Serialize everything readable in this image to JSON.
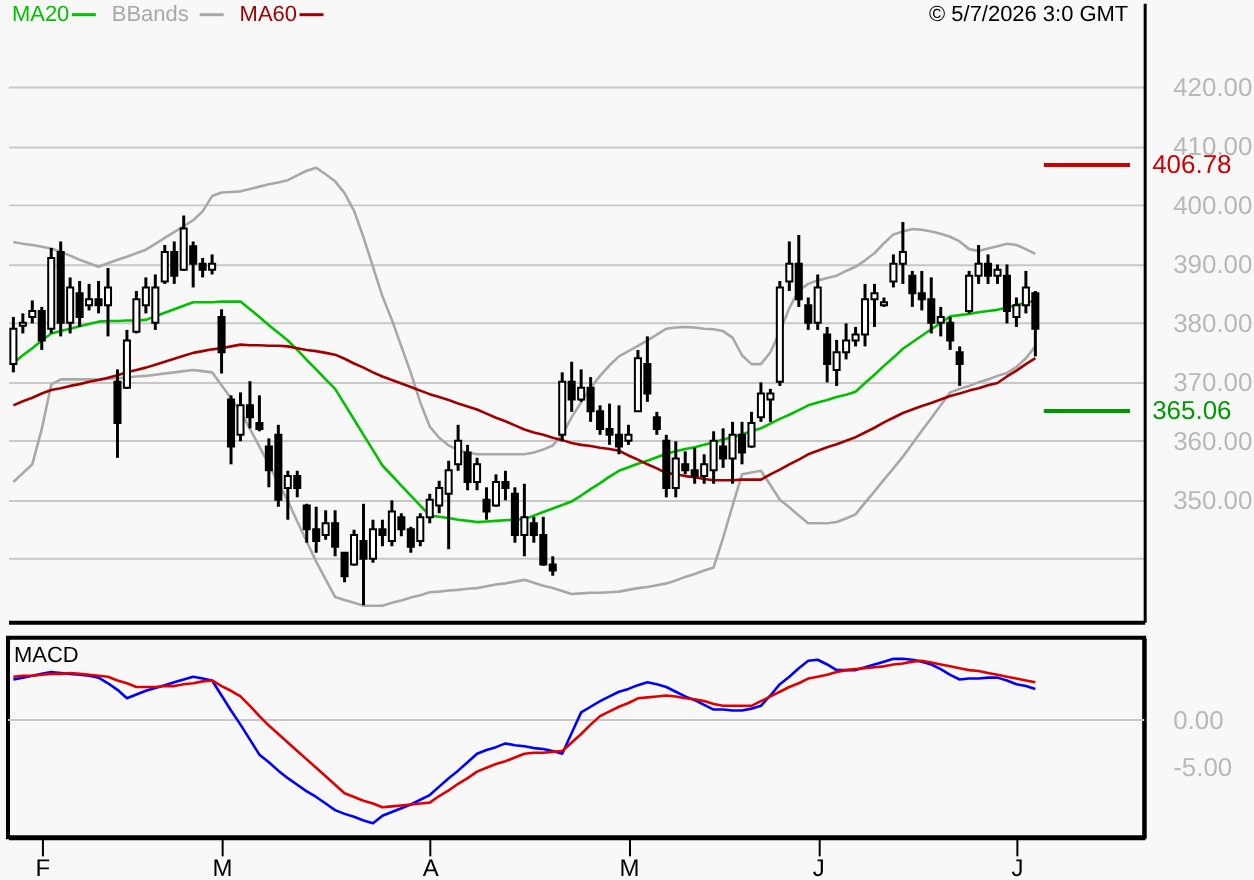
{
  "chart_data": [
    {
      "type": "candlestick",
      "legend": "top left",
      "grid": "y",
      "tick_labels": "y",
      "categories": [
        null,
        null,
        null,
        null,
        null,
        null,
        null,
        null,
        null,
        null,
        null,
        null,
        null,
        null,
        null,
        null,
        null,
        null,
        null,
        null,
        null,
        null,
        null,
        null,
        null,
        null,
        null,
        null,
        null,
        null,
        null,
        null,
        null,
        null,
        null,
        null,
        null,
        null,
        null,
        null,
        null,
        null,
        null,
        null,
        null,
        null,
        null,
        null,
        null,
        null,
        null,
        null,
        null,
        null,
        null,
        null,
        null,
        null,
        null,
        null,
        null,
        null,
        null,
        null,
        null,
        null,
        null,
        null,
        null,
        null,
        null,
        null,
        null,
        null,
        null,
        null,
        null,
        null,
        null,
        null,
        null,
        null,
        null,
        null,
        null,
        null,
        null,
        null,
        null,
        null,
        null,
        null,
        null,
        null,
        null,
        null,
        null,
        null,
        null,
        null,
        null,
        null,
        null,
        null,
        null,
        null,
        null,
        null,
        null
      ],
      "ohlc": [
        [
          373,
          381.0,
          371.6,
          379
        ],
        [
          379.5,
          381.6,
          378.2,
          380
        ],
        [
          381,
          383.8,
          379.9,
          382
        ],
        [
          382,
          382.7,
          375.4,
          377
        ],
        [
          379,
          392.7,
          378.2,
          391
        ],
        [
          392,
          393.8,
          377.7,
          380
        ],
        [
          380,
          387.7,
          378.2,
          386
        ],
        [
          385,
          387.1,
          379.3,
          381
        ],
        [
          383,
          386.6,
          382.1,
          384
        ],
        [
          384,
          387.1,
          381.6,
          383
        ],
        [
          383,
          389.3,
          377.7,
          386
        ],
        [
          370,
          372.1,
          357.1,
          363
        ],
        [
          369,
          378.8,
          368.8,
          377
        ],
        [
          378.5,
          385.4,
          378.2,
          384
        ],
        [
          383,
          387.7,
          381.6,
          386
        ],
        [
          380,
          388.2,
          378.8,
          386
        ],
        [
          387,
          393.2,
          386.6,
          392
        ],
        [
          392,
          393.8,
          386.6,
          388
        ],
        [
          389,
          398.2,
          388.8,
          396
        ],
        [
          393,
          393.8,
          386.0,
          390
        ],
        [
          390,
          391.0,
          387.7,
          389
        ],
        [
          389,
          391.6,
          388.2,
          390
        ],
        [
          381,
          382.3,
          371.4,
          375
        ],
        [
          367,
          367.7,
          356.0,
          359
        ],
        [
          361,
          368.2,
          359.9,
          366
        ],
        [
          366,
          370.1,
          362.1,
          364
        ],
        [
          363,
          367.7,
          361.6,
          362
        ],
        [
          359,
          360.4,
          352.1,
          355
        ],
        [
          361,
          362.7,
          348.8,
          350
        ],
        [
          352,
          354.9,
          346.6,
          354
        ],
        [
          354,
          354.9,
          350.4,
          352
        ],
        [
          349,
          349.3,
          342.7,
          345
        ],
        [
          345,
          348.8,
          341.0,
          343
        ],
        [
          344,
          348.2,
          343.2,
          346
        ],
        [
          346,
          348.2,
          340.4,
          342
        ],
        [
          341,
          341.0,
          336.0,
          337
        ],
        [
          339,
          344.9,
          338.8,
          344
        ],
        [
          343,
          349.3,
          332.1,
          340
        ],
        [
          340,
          346.6,
          339.3,
          345
        ],
        [
          345,
          346.6,
          342.1,
          344
        ],
        [
          343,
          349.9,
          342.1,
          348
        ],
        [
          347,
          347.7,
          343.8,
          345
        ],
        [
          345,
          345.4,
          341.0,
          342
        ],
        [
          343,
          347.7,
          342.1,
          347
        ],
        [
          347,
          351.0,
          346.0,
          350
        ],
        [
          349,
          353.2,
          347.7,
          352
        ],
        [
          351,
          356.6,
          341.6,
          355
        ],
        [
          356,
          362.7,
          354.9,
          360
        ],
        [
          358,
          359.3,
          351.6,
          353
        ],
        [
          353,
          357.1,
          351.6,
          356
        ],
        [
          350,
          352.1,
          346.6,
          348
        ],
        [
          349,
          354.3,
          348.8,
          353
        ],
        [
          353,
          354.9,
          349.9,
          352
        ],
        [
          351,
          352.1,
          342.7,
          344
        ],
        [
          344,
          352.7,
          340.4,
          347
        ],
        [
          346,
          347.1,
          342.7,
          344
        ],
        [
          344,
          347.1,
          338.8,
          339
        ],
        [
          339,
          340.4,
          337.1,
          338
        ],
        [
          361,
          371.6,
          359.9,
          370
        ],
        [
          370,
          373.4,
          364.9,
          367
        ],
        [
          367,
          372.1,
          366.6,
          369
        ],
        [
          369,
          370.8,
          363.2,
          365
        ],
        [
          365,
          366.0,
          361.0,
          362
        ],
        [
          362,
          366.3,
          359.3,
          361
        ],
        [
          361,
          366.0,
          357.7,
          359
        ],
        [
          360,
          362.7,
          359.3,
          361
        ],
        [
          365,
          375.4,
          364.9,
          374
        ],
        [
          373,
          377.7,
          366.6,
          368
        ],
        [
          364,
          364.9,
          361.0,
          362
        ],
        [
          360,
          361.0,
          350.4,
          352
        ],
        [
          352,
          359.9,
          350.4,
          357
        ],
        [
          356,
          358.2,
          354.3,
          355
        ],
        [
          355,
          358.8,
          352.7,
          354
        ],
        [
          354,
          357.7,
          352.7,
          356
        ],
        [
          355,
          361.6,
          352.7,
          360
        ],
        [
          359,
          362.1,
          355.4,
          357
        ],
        [
          357,
          363.2,
          352.7,
          361
        ],
        [
          361,
          363.2,
          356.0,
          358
        ],
        [
          359,
          364.9,
          358.8,
          363
        ],
        [
          364,
          369.9,
          363.2,
          368
        ],
        [
          367,
          368.8,
          363.2,
          368
        ],
        [
          370,
          387.1,
          369.3,
          386
        ],
        [
          387,
          393.8,
          385.4,
          390
        ],
        [
          390,
          394.9,
          382.7,
          384
        ],
        [
          383,
          384.3,
          378.8,
          380
        ],
        [
          380,
          388.2,
          378.8,
          386
        ],
        [
          378,
          379.3,
          369.9,
          373
        ],
        [
          372,
          377.1,
          369.3,
          375
        ],
        [
          375,
          379.9,
          373.8,
          377
        ],
        [
          377,
          379.3,
          376.0,
          378
        ],
        [
          378,
          386.6,
          376.0,
          384
        ],
        [
          384,
          386.6,
          379.3,
          385
        ],
        [
          383,
          384.3,
          382.7,
          383.5
        ],
        [
          387,
          391.6,
          386.0,
          390
        ],
        [
          390,
          397.1,
          386.6,
          392
        ],
        [
          388,
          388.8,
          382.7,
          385
        ],
        [
          385,
          388.8,
          382.1,
          384
        ],
        [
          384,
          387.7,
          378.2,
          380
        ],
        [
          380,
          382.7,
          377.7,
          381
        ],
        [
          380,
          381.0,
          375.4,
          377
        ],
        [
          375,
          376.0,
          369.3,
          373
        ],
        [
          382,
          388.8,
          381.6,
          388
        ],
        [
          388,
          393.2,
          386.6,
          390
        ],
        [
          390,
          391.6,
          386.6,
          388
        ],
        [
          388,
          389.9,
          386.6,
          389
        ],
        [
          388,
          389.9,
          379.9,
          382
        ],
        [
          381,
          384.3,
          379.3,
          383
        ],
        [
          383,
          388.8,
          381.6,
          386
        ],
        [
          385,
          385.4,
          374.3,
          379
        ]
      ],
      "series": [
        {
          "name": "MA20",
          "type": "line",
          "color": "#00c000",
          "values": [
            373.2,
            374.5,
            375.7,
            377.0,
            378.2,
            378.6,
            379.0,
            379.4,
            379.8,
            380.2,
            380.3,
            380.3,
            380.4,
            380.4,
            380.5,
            381.1,
            381.7,
            382.3,
            382.9,
            383.5,
            383.5,
            383.5,
            383.6,
            383.6,
            383.6,
            382.3,
            381.0,
            379.6,
            378.3,
            377.0,
            375.4,
            373.7,
            372.1,
            370.4,
            368.8,
            366.2,
            363.6,
            361.0,
            358.4,
            355.8,
            354.1,
            352.4,
            350.7,
            349.0,
            347.3,
            347.1,
            346.9,
            346.6,
            346.4,
            346.2,
            346.3,
            346.4,
            346.5,
            346.6,
            346.7,
            347.3,
            347.9,
            348.5,
            349.1,
            349.7,
            350.7,
            351.8,
            352.8,
            353.9,
            354.9,
            355.5,
            356.1,
            356.6,
            357.2,
            357.8,
            358.2,
            358.6,
            358.9,
            359.3,
            359.7,
            360.2,
            360.6,
            361.1,
            361.6,
            362.1,
            362.9,
            363.7,
            364.4,
            365.2,
            366.0,
            366.5,
            366.9,
            367.4,
            367.8,
            368.3,
            369.8,
            371.2,
            372.7,
            374.1,
            375.6,
            376.7,
            377.8,
            378.9,
            380.0,
            381.1,
            381.3,
            381.5,
            381.8,
            382.0,
            382.2,
            382.6,
            383.0,
            383.4,
            383.8
          ]
        },
        {
          "name": "BBands",
          "type": "line",
          "color": "#a8a8a8",
          "values": [
            393.7,
            393.4,
            393.2,
            392.9,
            392.6,
            392.0,
            391.4,
            390.7,
            390.1,
            389.5,
            390.1,
            390.7,
            391.2,
            391.8,
            392.4,
            393.4,
            394.4,
            395.4,
            396.4,
            397.4,
            398.9,
            401.5,
            402.1,
            402.2,
            402.3,
            402.7,
            403.1,
            403.5,
            403.8,
            404.2,
            405.0,
            405.8,
            406.3,
            405.2,
            404.0,
            402.0,
            399.0,
            394.5,
            389.5,
            384.5,
            380.5,
            376.0,
            371.5,
            366.5,
            362.4,
            360.5,
            359.2,
            358.4,
            358.0,
            357.7,
            357.7,
            357.7,
            357.7,
            357.7,
            357.7,
            358.0,
            358.5,
            359.2,
            361.0,
            364.0,
            366.5,
            369.0,
            371.0,
            372.8,
            374.3,
            375.2,
            376.1,
            377.0,
            378.0,
            379.0,
            379.2,
            379.3,
            379.2,
            379.0,
            378.9,
            378.6,
            377.5,
            374.5,
            373.0,
            373.0,
            375.0,
            378.5,
            382.5,
            385.5,
            386.6,
            387.2,
            387.6,
            388.0,
            388.8,
            389.5,
            390.6,
            391.8,
            393.5,
            395.0,
            395.5,
            395.9,
            395.8,
            395.5,
            395.1,
            394.6,
            393.8,
            392.5,
            392.2,
            392.6,
            393.0,
            393.4,
            393.2,
            392.5,
            391.7
          ]
        },
        {
          "type": "line",
          "color": "#a8a8a8",
          "values": [
            353.0,
            354.5,
            356.0,
            362.0,
            369.5,
            370.4,
            370.4,
            370.4,
            370.4,
            370.4,
            370.5,
            370.6,
            370.7,
            370.9,
            371.0,
            371.2,
            371.4,
            371.6,
            371.8,
            372.0,
            371.8,
            371.6,
            369.4,
            367.2,
            365.0,
            362.0,
            359.0,
            356.0,
            352.8,
            349.8,
            346.3,
            342.9,
            339.5,
            336.5,
            333.5,
            333.0,
            332.5,
            332.0,
            332.0,
            332.0,
            332.5,
            332.9,
            333.4,
            333.8,
            334.3,
            334.4,
            334.6,
            334.7,
            334.9,
            335.0,
            335.3,
            335.6,
            335.8,
            336.1,
            336.4,
            335.9,
            335.4,
            335.0,
            334.5,
            334.0,
            334.1,
            334.2,
            334.2,
            334.3,
            334.4,
            334.7,
            335.0,
            335.2,
            335.5,
            335.8,
            336.3,
            336.9,
            337.4,
            338.0,
            338.5,
            343.5,
            349.0,
            354.3,
            354.6,
            354.9,
            352.5,
            350.0,
            348.7,
            347.3,
            346.0,
            346.0,
            346.0,
            346.2,
            346.8,
            347.5,
            349.5,
            351.4,
            353.4,
            355.3,
            357.3,
            359.5,
            361.7,
            363.8,
            366.0,
            368.2,
            368.8,
            369.3,
            369.9,
            370.4,
            371.0,
            371.5,
            372.5,
            374.0,
            376.0
          ]
        },
        {
          "name": "MA60",
          "type": "line",
          "color": "#a00000",
          "values": [
            366.0,
            366.7,
            367.3,
            368.0,
            368.6,
            368.9,
            369.3,
            369.6,
            370.0,
            370.3,
            370.7,
            371.1,
            371.6,
            372.0,
            372.4,
            372.9,
            373.4,
            373.9,
            374.4,
            374.9,
            375.2,
            375.5,
            375.7,
            376.0,
            376.3,
            376.2,
            376.2,
            376.1,
            376.1,
            376.0,
            375.7,
            375.4,
            375.2,
            374.9,
            374.6,
            373.9,
            373.1,
            372.4,
            371.6,
            370.9,
            370.3,
            369.7,
            369.1,
            368.5,
            367.9,
            367.4,
            366.9,
            366.3,
            365.8,
            365.3,
            364.6,
            363.9,
            363.3,
            362.6,
            361.9,
            361.4,
            361.0,
            360.5,
            360.1,
            359.6,
            359.3,
            359.1,
            358.8,
            358.6,
            358.3,
            357.5,
            356.8,
            356.0,
            355.3,
            354.5,
            354.3,
            354.0,
            353.8,
            353.5,
            353.3,
            353.3,
            353.3,
            353.4,
            353.4,
            353.4,
            354.3,
            355.1,
            356.0,
            356.8,
            357.7,
            358.3,
            358.9,
            359.4,
            360.0,
            360.6,
            361.4,
            362.2,
            363.1,
            363.9,
            364.7,
            365.3,
            365.9,
            366.4,
            367.0,
            367.6,
            368.0,
            368.5,
            368.9,
            369.4,
            369.8,
            370.9,
            371.9,
            373.0,
            374.0
          ]
        }
      ],
      "ylim": [
        329.3,
        434.3
      ],
      "yticks": [
        {
          "value": 340,
          "label": null
        },
        {
          "value": 350,
          "label": "350.00"
        },
        {
          "value": 360,
          "label": "360.00"
        },
        {
          "value": 370,
          "label": "370.00"
        },
        {
          "value": 380,
          "label": "380.00"
        },
        {
          "value": 390,
          "label": "390.00"
        },
        {
          "value": 400,
          "label": "400.00"
        },
        {
          "value": 410,
          "label": "410.00"
        },
        {
          "value": 420,
          "label": "420.00"
        }
      ],
      "ref_lines": [
        {
          "axis": "y",
          "value": 406.78,
          "label": "406.78",
          "color": "#cc0000"
        },
        {
          "axis": "y",
          "value": 365.06,
          "label": "365.06",
          "color": "#009900"
        }
      ],
      "annotations": [
        "© 5/7/2026 3:0 GMT"
      ]
    },
    {
      "type": "line",
      "title": "MACD",
      "categories": [
        null,
        null,
        null,
        "F",
        null,
        null,
        null,
        null,
        null,
        null,
        null,
        null,
        null,
        null,
        null,
        null,
        null,
        null,
        null,
        null,
        null,
        null,
        "M",
        null,
        null,
        null,
        null,
        null,
        null,
        null,
        null,
        null,
        null,
        null,
        null,
        null,
        null,
        null,
        null,
        null,
        null,
        null,
        null,
        null,
        "A",
        null,
        null,
        null,
        null,
        null,
        null,
        null,
        null,
        null,
        null,
        null,
        null,
        null,
        null,
        null,
        null,
        null,
        null,
        null,
        null,
        "M",
        null,
        null,
        null,
        null,
        null,
        null,
        null,
        null,
        null,
        null,
        null,
        null,
        null,
        null,
        null,
        null,
        null,
        null,
        null,
        "J",
        null,
        null,
        null,
        null,
        null,
        null,
        null,
        null,
        null,
        null,
        null,
        null,
        null,
        null,
        null,
        null,
        null,
        null,
        null,
        null,
        "J",
        null,
        null
      ],
      "series": [
        {
          "color": "#0000ff",
          "values": [
            4.3,
            4.5,
            4.7,
            4.9,
            5.1,
            5.0,
            4.9,
            4.8,
            4.7,
            4.5,
            3.9,
            3.2,
            2.3,
            2.7,
            3.1,
            3.4,
            3.7,
            4.0,
            4.3,
            4.6,
            4.4,
            4.2,
            2.6,
            1.0,
            -0.5,
            -2.1,
            -3.7,
            -4.5,
            -5.4,
            -6.2,
            -6.9,
            -7.6,
            -8.2,
            -8.9,
            -9.6,
            -10.0,
            -10.3,
            -10.7,
            -11.0,
            -10.2,
            -9.8,
            -9.4,
            -9.0,
            -8.5,
            -8.0,
            -7.1,
            -6.2,
            -5.4,
            -4.5,
            -3.6,
            -3.2,
            -2.9,
            -2.5,
            -2.7,
            -2.8,
            -3.0,
            -3.1,
            -3.3,
            -3.6,
            -1.4,
            0.8,
            1.4,
            2.0,
            2.5,
            3.0,
            3.3,
            3.7,
            4.0,
            3.8,
            3.5,
            3.0,
            2.5,
            2.1,
            1.6,
            1.1,
            1.1,
            1.0,
            1.0,
            1.2,
            1.5,
            2.6,
            3.8,
            4.6,
            5.5,
            6.3,
            6.4,
            5.9,
            5.3,
            5.3,
            5.3,
            5.6,
            5.9,
            6.2,
            6.5,
            6.5,
            6.4,
            6.2,
            5.9,
            5.4,
            4.8,
            4.3,
            4.4,
            4.4,
            4.5,
            4.5,
            4.2,
            3.8,
            3.6,
            3.3
          ]
        },
        {
          "color": "#e00000",
          "values": [
            4.6,
            4.7,
            4.7,
            4.8,
            4.9,
            4.9,
            5.0,
            4.9,
            4.8,
            4.7,
            4.6,
            4.2,
            3.9,
            3.5,
            3.5,
            3.5,
            3.6,
            3.6,
            3.8,
            3.9,
            4.1,
            4.2,
            3.6,
            3.1,
            2.5,
            1.5,
            0.4,
            -0.6,
            -1.5,
            -2.4,
            -3.3,
            -4.2,
            -5.1,
            -6.0,
            -6.9,
            -7.8,
            -8.2,
            -8.6,
            -8.9,
            -9.3,
            -9.2,
            -9.1,
            -9.0,
            -8.9,
            -8.8,
            -8.1,
            -7.5,
            -6.8,
            -6.2,
            -5.5,
            -5.1,
            -4.7,
            -4.4,
            -4.0,
            -3.6,
            -3.5,
            -3.5,
            -3.4,
            -3.3,
            -2.4,
            -1.5,
            -0.5,
            0.4,
            0.9,
            1.4,
            1.8,
            2.3,
            2.4,
            2.5,
            2.6,
            2.5,
            2.3,
            2.2,
            2.0,
            1.7,
            1.5,
            1.5,
            1.5,
            1.5,
            2.0,
            2.5,
            3.0,
            3.5,
            3.9,
            4.4,
            4.6,
            4.8,
            5.1,
            5.3,
            5.4,
            5.5,
            5.6,
            5.7,
            5.9,
            6.0,
            6.2,
            6.3,
            6.1,
            5.9,
            5.7,
            5.5,
            5.3,
            5.2,
            5.0,
            4.8,
            4.6,
            4.4,
            4.2,
            4.0
          ]
        }
      ],
      "ylim": [
        -12.5,
        8.75
      ],
      "yticks": [
        {
          "value": 0,
          "label": "0.00"
        },
        {
          "value": -5,
          "label": "-5.00"
        }
      ],
      "ref_lines": [
        {
          "axis": "y",
          "value": 0,
          "color": "#c8c8c8"
        }
      ]
    }
  ]
}
